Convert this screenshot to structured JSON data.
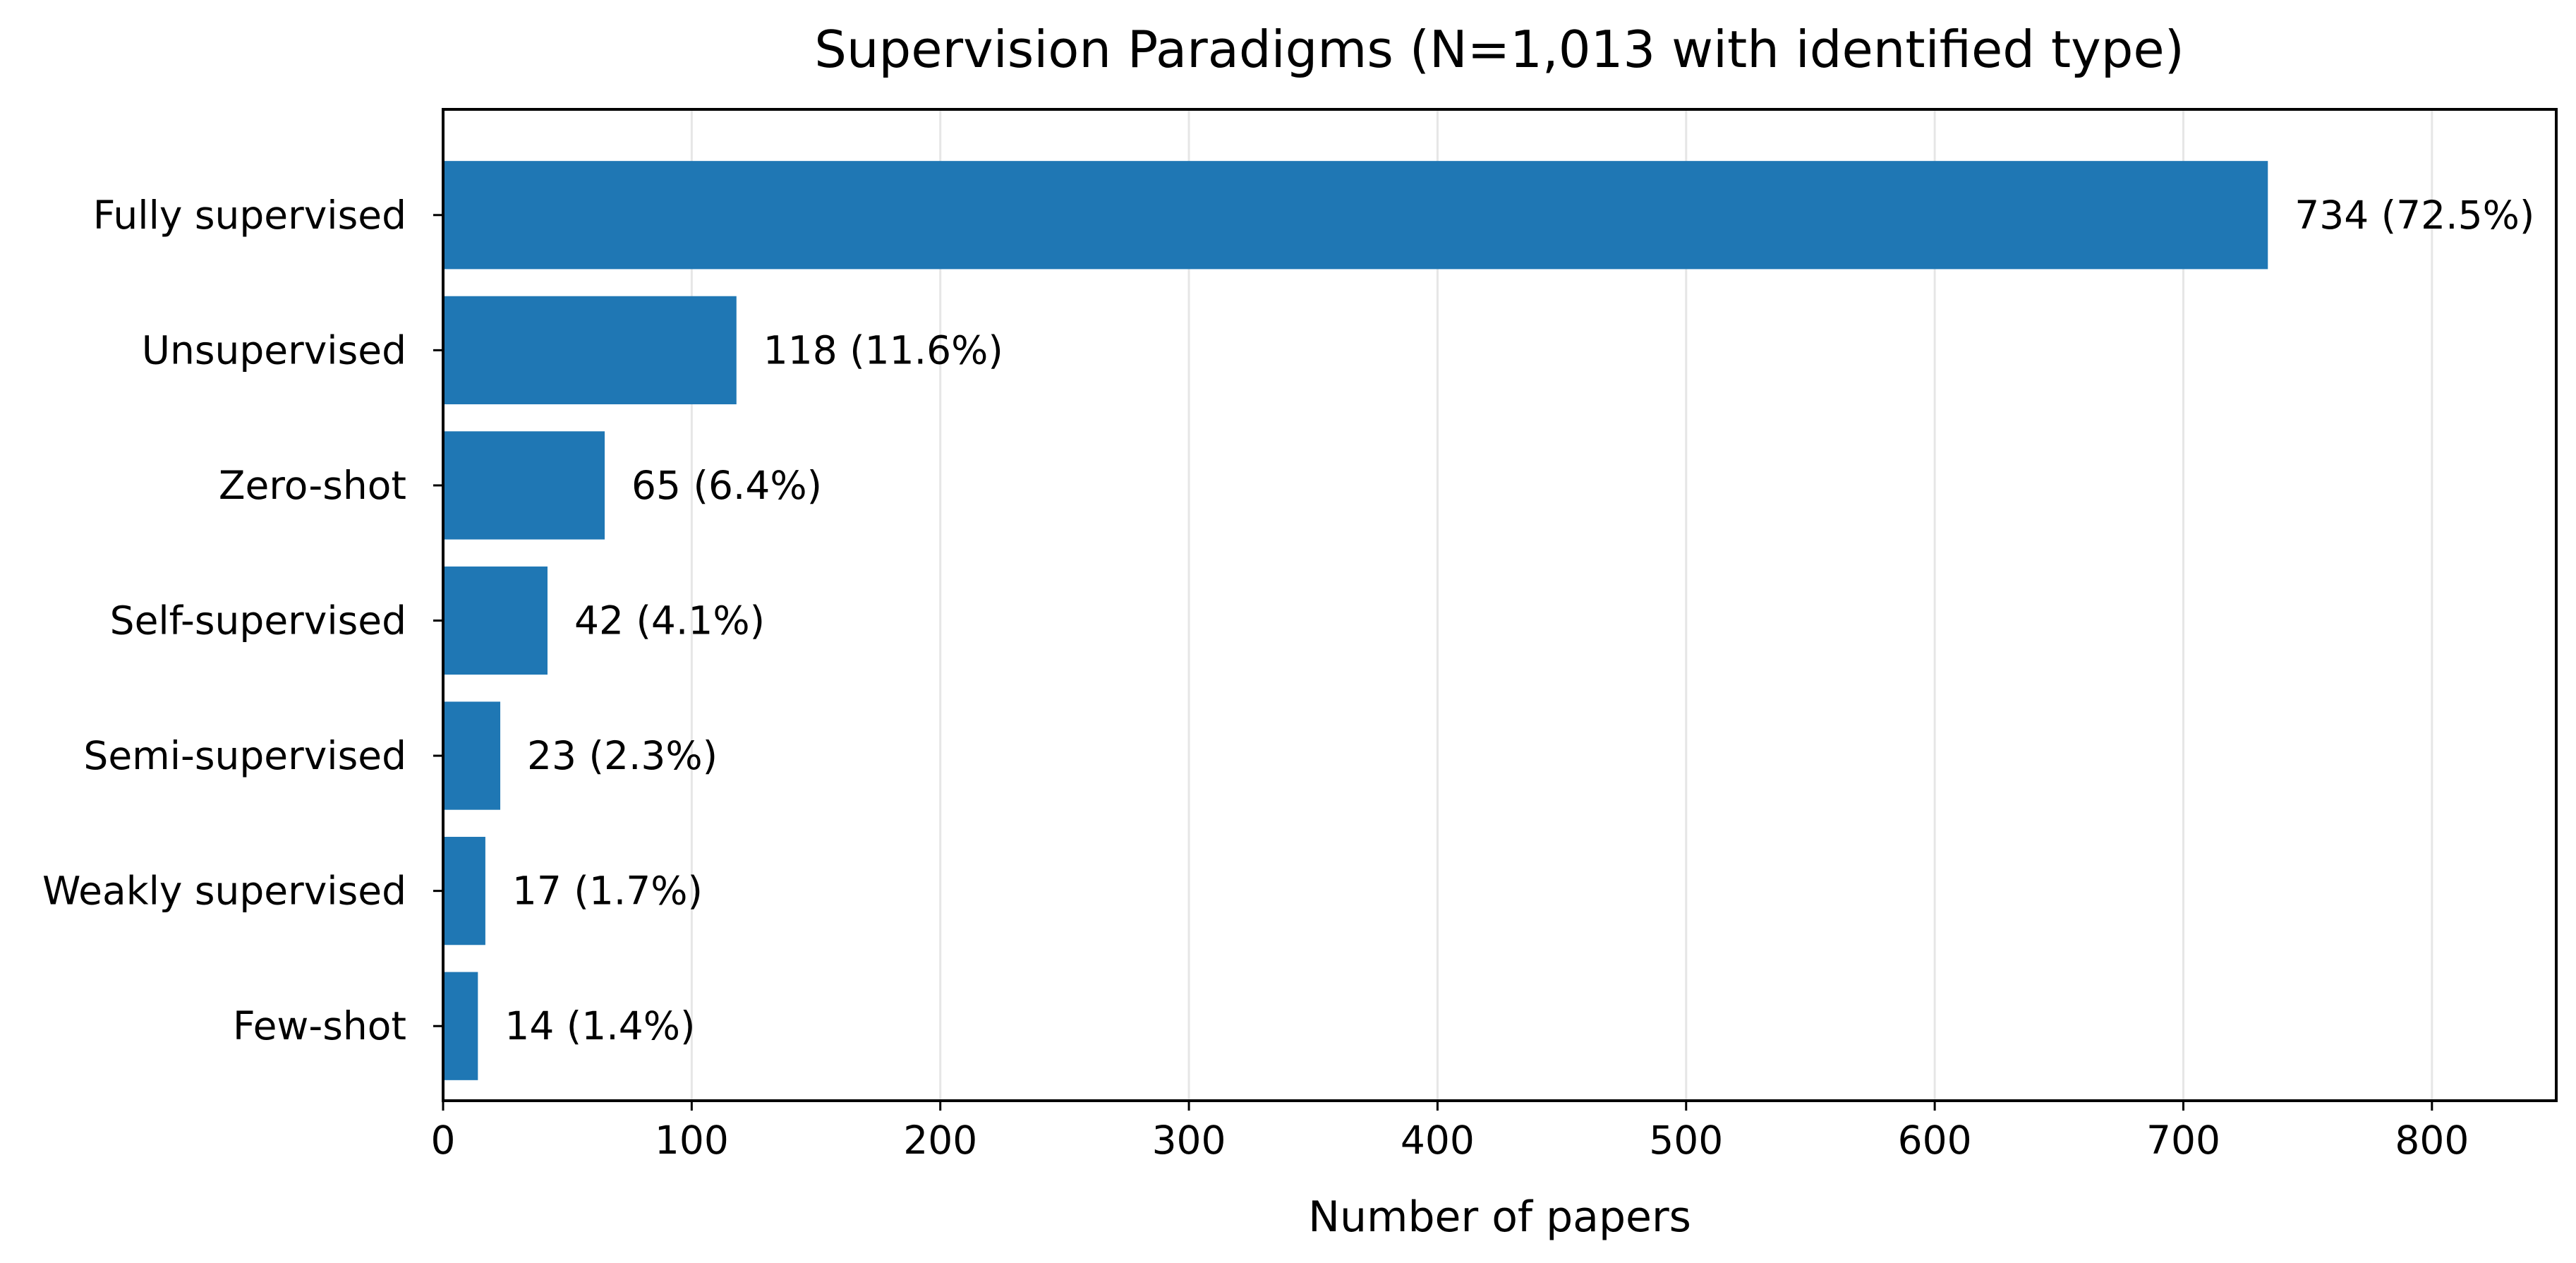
{
  "chart_data": {
    "type": "bar",
    "orientation": "horizontal",
    "title": "Supervision Paradigms (N=1,013 with identified type)",
    "xlabel": "Number of papers",
    "ylabel": "",
    "xlim": [
      0,
      850
    ],
    "xticks": [
      0,
      100,
      200,
      300,
      400,
      500,
      600,
      700,
      800
    ],
    "grid": "x",
    "bar_color": "#1f77b4",
    "categories": [
      "Fully supervised",
      "Unsupervised",
      "Zero-shot",
      "Self-supervised",
      "Semi-supervised",
      "Weakly supervised",
      "Few-shot"
    ],
    "values": [
      734,
      118,
      65,
      42,
      23,
      17,
      14
    ],
    "data_labels": [
      "734 (72.5%)",
      "118 (11.6%)",
      "65 (6.4%)",
      "42 (4.1%)",
      "23 (2.3%)",
      "17 (1.7%)",
      "14 (1.4%)"
    ]
  }
}
